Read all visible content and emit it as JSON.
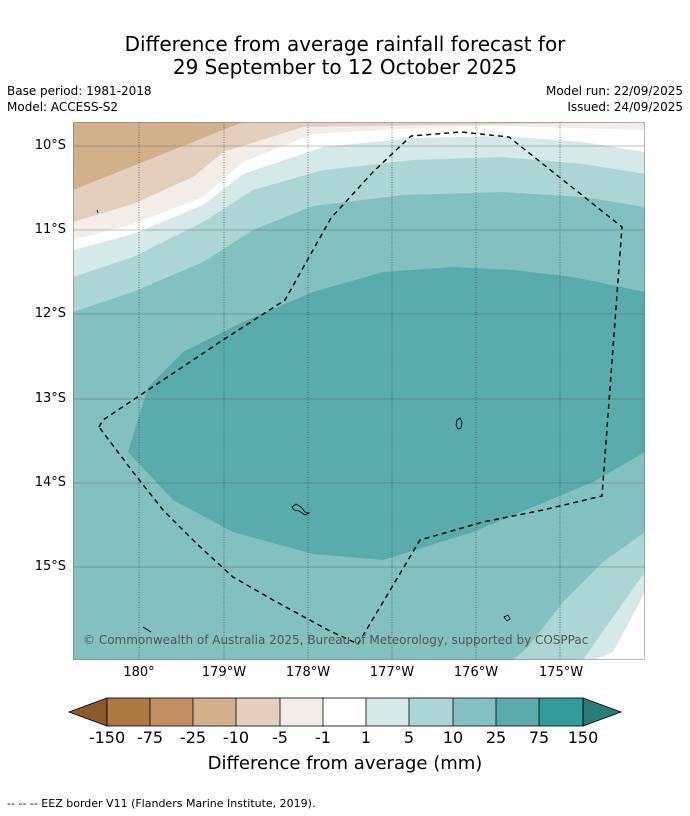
{
  "title": {
    "line1": "Difference from average rainfall forecast for",
    "line2": "29 September to 12 October 2025"
  },
  "meta": {
    "base_period": "Base period: 1981-2018",
    "model": "Model: ACCESS-S2",
    "model_run": "Model run: 22/09/2025",
    "issued": "Issued: 24/09/2025"
  },
  "map": {
    "lat_labels": [
      "10°S",
      "11°S",
      "12°S",
      "13°S",
      "14°S",
      "15°S"
    ],
    "lon_labels": [
      "180°",
      "179°W",
      "178°W",
      "177°W",
      "176°W",
      "175°W"
    ],
    "copyright": "© Commonwealth of Australia 2025, Bureau of Meteorology, supported by COSPPac",
    "colors": {
      "brown_75": "#ac7843",
      "brown_25": "#c09263",
      "brown_10": "#d3b08c",
      "brown_5": "#e4cfbc",
      "brown_1": "#f2ede6",
      "white": "#ffffff",
      "teal_1": "#d5e9e8",
      "teal_5": "#acd6d5",
      "teal_10": "#83c1c0",
      "teal_25": "#5aabab",
      "teal_75": "#339a9a",
      "teal_150": "#2b7a7a"
    }
  },
  "colorbar": {
    "labels": [
      "-150",
      "-75",
      "-25",
      "-10",
      "-5",
      "-1",
      "1",
      "5",
      "10",
      "25",
      "75",
      "150"
    ],
    "title": "Difference from average (mm)"
  },
  "footnote": "--  --  -- EEZ border V11 (Flanders Marine Institute, 2019)."
}
